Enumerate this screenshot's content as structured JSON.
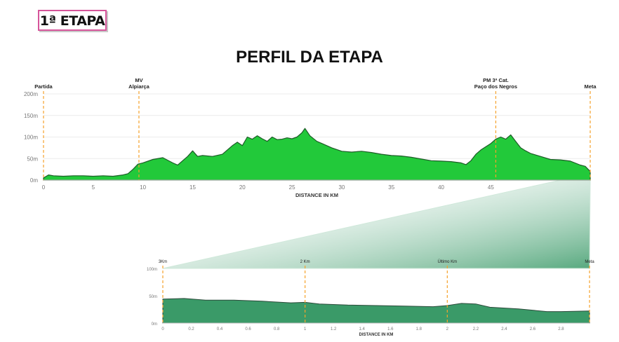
{
  "header": {
    "stage_label": "1ª ETAPA",
    "title": "PERFIL DA ETAPA"
  },
  "colors": {
    "fill": "#22c93a",
    "stroke": "#1d5c27",
    "marker": "#f5a22b",
    "grid": "#ececec",
    "axis_text": "#777777",
    "zoom_fill": "#3a9a68"
  },
  "chart_data": [
    {
      "type": "area",
      "xlabel": "DISTANCE IN KM",
      "ylabel": "",
      "xlim": [
        0,
        55
      ],
      "ylim": [
        0,
        200
      ],
      "xticks": [
        0,
        5,
        10,
        15,
        20,
        25,
        30,
        35,
        40,
        45
      ],
      "yticks": [
        {
          "value": 0,
          "label": "0m"
        },
        {
          "value": 50,
          "label": "50m"
        },
        {
          "value": 100,
          "label": "100m"
        },
        {
          "value": 150,
          "label": "150m"
        },
        {
          "value": 200,
          "label": "200m"
        }
      ],
      "grid": true,
      "markers": [
        {
          "km": 0,
          "lines": [
            "Partida"
          ]
        },
        {
          "km": 9.6,
          "lines": [
            "MV",
            "Alpiarça"
          ]
        },
        {
          "km": 45.5,
          "lines": [
            "PM 3ª Cat.",
            "Paço dos Negros"
          ]
        },
        {
          "km": 55,
          "lines": [
            "Meta"
          ]
        }
      ],
      "series": [
        {
          "x": [
            0,
            0.5,
            1,
            2,
            3,
            4,
            5,
            6,
            7,
            8,
            8.5,
            9,
            9.5,
            10,
            11,
            12,
            13,
            13.5,
            14,
            14.5,
            15,
            15.5,
            16,
            17,
            18,
            18.5,
            19,
            19.5,
            20,
            20.5,
            21,
            21.5,
            22,
            22.5,
            23,
            23.5,
            24,
            24.5,
            25,
            25.5,
            26,
            26.3,
            26.8,
            27.5,
            28,
            29,
            30,
            31,
            32,
            33,
            34,
            35,
            36,
            37,
            38,
            39,
            40,
            41,
            42,
            42.5,
            43,
            43.5,
            44,
            45,
            45.5,
            46,
            46.5,
            47,
            47.5,
            48,
            48.5,
            49,
            50,
            51,
            52,
            53,
            54,
            54.5,
            55
          ],
          "y": [
            5,
            12,
            10,
            9,
            10,
            10,
            9,
            10,
            9,
            12,
            15,
            25,
            37,
            40,
            48,
            52,
            40,
            35,
            45,
            55,
            68,
            55,
            57,
            55,
            60,
            70,
            80,
            88,
            80,
            100,
            95,
            103,
            96,
            90,
            100,
            94,
            95,
            98,
            96,
            100,
            110,
            120,
            103,
            90,
            85,
            75,
            67,
            65,
            67,
            64,
            60,
            57,
            56,
            53,
            49,
            45,
            44,
            43,
            40,
            36,
            45,
            60,
            70,
            85,
            95,
            100,
            95,
            105,
            90,
            75,
            68,
            62,
            55,
            48,
            47,
            44,
            35,
            32,
            20
          ]
        }
      ]
    },
    {
      "type": "area",
      "xlabel": "DISTANCE IN KM",
      "ylabel": "",
      "xlim": [
        0,
        3
      ],
      "ylim": [
        0,
        100
      ],
      "xticks": [
        0,
        0.2,
        0.4,
        0.6,
        0.8,
        1,
        1.2,
        1.4,
        1.6,
        1.8,
        2,
        2.2,
        2.4,
        2.6,
        2.8
      ],
      "yticks": [
        {
          "value": 0,
          "label": "0m"
        },
        {
          "value": 50,
          "label": "50m"
        },
        {
          "value": 100,
          "label": "100m"
        }
      ],
      "grid": false,
      "markers": [
        {
          "km": 0,
          "lines": [
            "3Km"
          ]
        },
        {
          "km": 1,
          "lines": [
            "2 Km"
          ]
        },
        {
          "km": 2,
          "lines": [
            "Último Km"
          ]
        },
        {
          "km": 3,
          "lines": [
            "Meta"
          ]
        }
      ],
      "series": [
        {
          "x": [
            0,
            0.15,
            0.3,
            0.5,
            0.7,
            0.9,
            1.0,
            1.1,
            1.3,
            1.5,
            1.7,
            1.9,
            2.0,
            2.1,
            2.2,
            2.3,
            2.5,
            2.7,
            2.8,
            3.0
          ],
          "y": [
            44,
            45,
            42,
            42,
            40,
            37,
            38,
            35,
            33,
            32,
            31,
            30,
            32,
            36,
            35,
            29,
            26,
            21,
            21,
            22
          ]
        }
      ]
    }
  ]
}
